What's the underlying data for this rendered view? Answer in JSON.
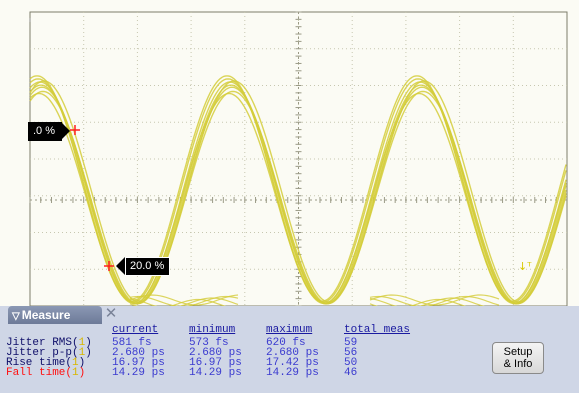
{
  "markers": {
    "top_label": ".0 %",
    "bottom_label": "20.0 %"
  },
  "trigger_icon": "↓ᵀ",
  "measure": {
    "tab_label": "Measure",
    "close_glyph": "✕",
    "columns": [
      "current",
      "minimum",
      "maximum",
      "total meas"
    ],
    "rows": [
      {
        "label": "Jitter RMS(",
        "source": "1",
        "close": ")",
        "current": "581 fs",
        "minimum": "573 fs",
        "maximum": "620 fs",
        "total": "59",
        "color": "#10106a"
      },
      {
        "label": "Jitter p-p(",
        "source": "1",
        "close": ")",
        "current": "2.680 ps",
        "minimum": "2.680 ps",
        "maximum": "2.680 ps",
        "total": "56",
        "color": "#10106a"
      },
      {
        "label": "Rise time(",
        "source": "1",
        "close": ")",
        "current": "16.97 ps",
        "minimum": "16.97 ps",
        "maximum": "17.42 ps",
        "total": "50",
        "color": "#10106a"
      },
      {
        "label": "Fall time(",
        "source": "1",
        "close": ")",
        "current": "14.29 ps",
        "minimum": "14.29 ps",
        "maximum": "14.29 ps",
        "total": "46",
        "color": "#ff1010"
      }
    ],
    "setup_button": {
      "line1": "Setup",
      "line2": "& Info"
    }
  },
  "colors": {
    "trace": "#d4cc3a",
    "panel": "#cfd6e6",
    "grid": "#b8b8a0",
    "marker": "#ff2020"
  }
}
